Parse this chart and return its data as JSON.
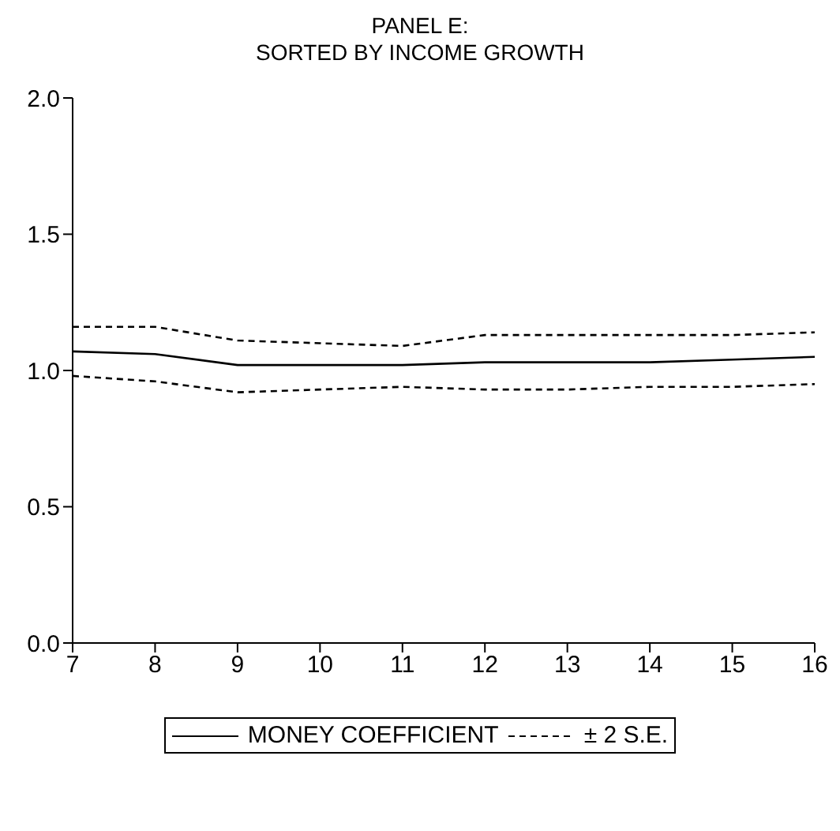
{
  "chart_data": {
    "type": "line",
    "title": "PANEL E:\nSORTED BY INCOME GROWTH",
    "x": [
      7,
      8,
      9,
      10,
      11,
      12,
      13,
      14,
      15,
      16
    ],
    "series": [
      {
        "name": "MONEY COEFFICIENT",
        "color": "#000000",
        "line_style": "solid",
        "values": [
          1.07,
          1.06,
          1.02,
          1.02,
          1.02,
          1.03,
          1.03,
          1.03,
          1.04,
          1.05
        ]
      },
      {
        "name": "± 2 S.E.",
        "color": "#000000",
        "line_style": "dashed",
        "values": [
          1.16,
          1.16,
          1.11,
          1.1,
          1.09,
          1.13,
          1.13,
          1.13,
          1.13,
          1.14
        ]
      },
      {
        "color": "#000000",
        "line_style": "dashed",
        "values": [
          0.98,
          0.96,
          0.92,
          0.93,
          0.94,
          0.93,
          0.93,
          0.94,
          0.94,
          0.95
        ]
      }
    ],
    "xlim": [
      7,
      16
    ],
    "xticks": [
      7,
      8,
      9,
      10,
      11,
      12,
      13,
      14,
      15,
      16
    ],
    "ylim": [
      0,
      2
    ],
    "yticks": [
      {
        "value": 0,
        "label": "0.0"
      },
      {
        "value": 0.5,
        "label": "0.5"
      },
      {
        "value": 1,
        "label": "1.0"
      },
      {
        "value": 1.5,
        "label": "1.5"
      },
      {
        "value": 2,
        "label": "2.0"
      }
    ],
    "grid": false,
    "legend": "bottom",
    "marker": "none"
  }
}
